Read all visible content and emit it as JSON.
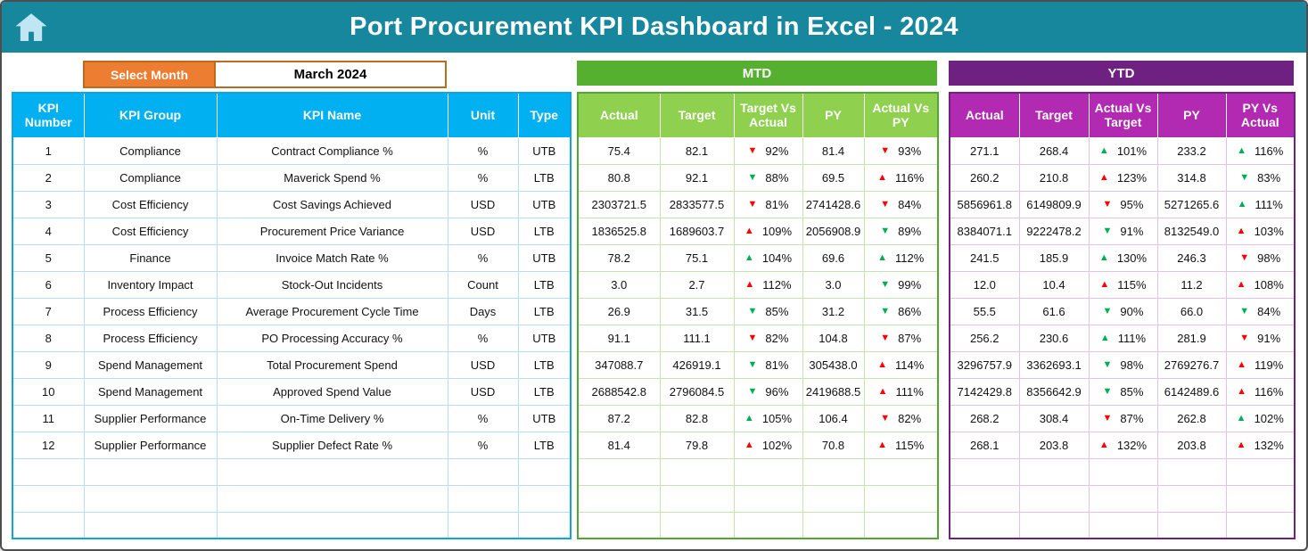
{
  "app": {
    "title": "Port Procurement KPI Dashboard in Excel - 2024"
  },
  "icons": {
    "home": "home-icon"
  },
  "filters": {
    "select_month_label": "Select Month",
    "selected_month": "March 2024"
  },
  "colors": {
    "header_teal": "#16879C",
    "accent_orange": "#ED7D31",
    "kpi_header_blue": "#00B0F0",
    "mtd_band_green": "#55B030",
    "mtd_header_green": "#8FD14F",
    "ytd_band_purple": "#6E2181",
    "ytd_header_magenta": "#B229B2",
    "trend_good_green": "#00B050",
    "trend_bad_red": "#FF0000"
  },
  "kpi_table": {
    "headers": [
      "KPI Number",
      "KPI Group",
      "KPI Name",
      "Unit",
      "Type"
    ],
    "empty_rows": 3,
    "rows": [
      {
        "number": "1",
        "group": "Compliance",
        "name": "Contract Compliance %",
        "unit": "%",
        "type": "UTB"
      },
      {
        "number": "2",
        "group": "Compliance",
        "name": "Maverick Spend %",
        "unit": "%",
        "type": "LTB"
      },
      {
        "number": "3",
        "group": "Cost Efficiency",
        "name": "Cost Savings Achieved",
        "unit": "USD",
        "type": "UTB"
      },
      {
        "number": "4",
        "group": "Cost Efficiency",
        "name": "Procurement Price Variance",
        "unit": "USD",
        "type": "LTB"
      },
      {
        "number": "5",
        "group": "Finance",
        "name": "Invoice Match Rate %",
        "unit": "%",
        "type": "UTB"
      },
      {
        "number": "6",
        "group": "Inventory Impact",
        "name": "Stock-Out Incidents",
        "unit": "Count",
        "type": "LTB"
      },
      {
        "number": "7",
        "group": "Process Efficiency",
        "name": "Average Procurement Cycle Time",
        "unit": "Days",
        "type": "LTB"
      },
      {
        "number": "8",
        "group": "Process Efficiency",
        "name": "PO Processing Accuracy %",
        "unit": "%",
        "type": "UTB"
      },
      {
        "number": "9",
        "group": "Spend Management",
        "name": "Total Procurement Spend",
        "unit": "USD",
        "type": "LTB"
      },
      {
        "number": "10",
        "group": "Spend Management",
        "name": "Approved Spend Value",
        "unit": "USD",
        "type": "LTB"
      },
      {
        "number": "11",
        "group": "Supplier Performance",
        "name": "On-Time Delivery %",
        "unit": "%",
        "type": "UTB"
      },
      {
        "number": "12",
        "group": "Supplier Performance",
        "name": "Supplier Defect Rate %",
        "unit": "%",
        "type": "LTB"
      }
    ]
  },
  "mtd": {
    "band_label": "MTD",
    "headers": [
      "Actual",
      "Target",
      "Target Vs Actual",
      "PY",
      "Actual Vs PY"
    ],
    "empty_rows": 3,
    "rows": [
      {
        "actual": "75.4",
        "target": "82.1",
        "tva": {
          "dir": "down",
          "color": "red",
          "value": "92%"
        },
        "py": "81.4",
        "avpy": {
          "dir": "down",
          "color": "red",
          "value": "93%"
        }
      },
      {
        "actual": "80.8",
        "target": "92.1",
        "tva": {
          "dir": "down",
          "color": "green",
          "value": "88%"
        },
        "py": "69.5",
        "avpy": {
          "dir": "up",
          "color": "red",
          "value": "116%"
        }
      },
      {
        "actual": "2303721.5",
        "target": "2833577.5",
        "tva": {
          "dir": "down",
          "color": "red",
          "value": "81%"
        },
        "py": "2741428.6",
        "avpy": {
          "dir": "down",
          "color": "red",
          "value": "84%"
        }
      },
      {
        "actual": "1836525.8",
        "target": "1689603.7",
        "tva": {
          "dir": "up",
          "color": "red",
          "value": "109%"
        },
        "py": "2056908.9",
        "avpy": {
          "dir": "down",
          "color": "green",
          "value": "89%"
        }
      },
      {
        "actual": "78.2",
        "target": "75.1",
        "tva": {
          "dir": "up",
          "color": "green",
          "value": "104%"
        },
        "py": "69.6",
        "avpy": {
          "dir": "up",
          "color": "green",
          "value": "112%"
        }
      },
      {
        "actual": "3.0",
        "target": "2.7",
        "tva": {
          "dir": "up",
          "color": "red",
          "value": "112%"
        },
        "py": "3.0",
        "avpy": {
          "dir": "down",
          "color": "green",
          "value": "99%"
        }
      },
      {
        "actual": "26.9",
        "target": "31.5",
        "tva": {
          "dir": "down",
          "color": "green",
          "value": "85%"
        },
        "py": "31.2",
        "avpy": {
          "dir": "down",
          "color": "green",
          "value": "86%"
        }
      },
      {
        "actual": "91.1",
        "target": "111.1",
        "tva": {
          "dir": "down",
          "color": "red",
          "value": "82%"
        },
        "py": "104.8",
        "avpy": {
          "dir": "down",
          "color": "red",
          "value": "87%"
        }
      },
      {
        "actual": "347088.7",
        "target": "426919.1",
        "tva": {
          "dir": "down",
          "color": "green",
          "value": "81%"
        },
        "py": "305438.0",
        "avpy": {
          "dir": "up",
          "color": "red",
          "value": "114%"
        }
      },
      {
        "actual": "2688542.8",
        "target": "2796084.5",
        "tva": {
          "dir": "down",
          "color": "green",
          "value": "96%"
        },
        "py": "2419688.5",
        "avpy": {
          "dir": "up",
          "color": "red",
          "value": "111%"
        }
      },
      {
        "actual": "87.2",
        "target": "82.8",
        "tva": {
          "dir": "up",
          "color": "green",
          "value": "105%"
        },
        "py": "106.4",
        "avpy": {
          "dir": "down",
          "color": "red",
          "value": "82%"
        }
      },
      {
        "actual": "81.4",
        "target": "79.8",
        "tva": {
          "dir": "up",
          "color": "red",
          "value": "102%"
        },
        "py": "70.8",
        "avpy": {
          "dir": "up",
          "color": "red",
          "value": "115%"
        }
      }
    ]
  },
  "ytd": {
    "band_label": "YTD",
    "headers": [
      "Actual",
      "Target",
      "Actual Vs Target",
      "PY",
      "PY Vs Actual"
    ],
    "empty_rows": 3,
    "rows": [
      {
        "actual": "271.1",
        "target": "268.4",
        "avt": {
          "dir": "up",
          "color": "green",
          "value": "101%"
        },
        "py": "233.2",
        "pyva": {
          "dir": "up",
          "color": "green",
          "value": "116%"
        }
      },
      {
        "actual": "260.2",
        "target": "210.8",
        "avt": {
          "dir": "up",
          "color": "red",
          "value": "123%"
        },
        "py": "314.8",
        "pyva": {
          "dir": "down",
          "color": "green",
          "value": "83%"
        }
      },
      {
        "actual": "5856961.8",
        "target": "6149809.9",
        "avt": {
          "dir": "down",
          "color": "red",
          "value": "95%"
        },
        "py": "5271265.6",
        "pyva": {
          "dir": "up",
          "color": "green",
          "value": "111%"
        }
      },
      {
        "actual": "8384071.1",
        "target": "9222478.2",
        "avt": {
          "dir": "down",
          "color": "green",
          "value": "91%"
        },
        "py": "8132549.0",
        "pyva": {
          "dir": "up",
          "color": "red",
          "value": "103%"
        }
      },
      {
        "actual": "241.5",
        "target": "185.9",
        "avt": {
          "dir": "up",
          "color": "green",
          "value": "130%"
        },
        "py": "246.3",
        "pyva": {
          "dir": "down",
          "color": "red",
          "value": "98%"
        }
      },
      {
        "actual": "12.0",
        "target": "10.4",
        "avt": {
          "dir": "up",
          "color": "red",
          "value": "115%"
        },
        "py": "11.2",
        "pyva": {
          "dir": "up",
          "color": "red",
          "value": "108%"
        }
      },
      {
        "actual": "55.5",
        "target": "61.6",
        "avt": {
          "dir": "down",
          "color": "green",
          "value": "90%"
        },
        "py": "66.0",
        "pyva": {
          "dir": "down",
          "color": "green",
          "value": "84%"
        }
      },
      {
        "actual": "256.2",
        "target": "230.6",
        "avt": {
          "dir": "up",
          "color": "green",
          "value": "111%"
        },
        "py": "281.9",
        "pyva": {
          "dir": "down",
          "color": "red",
          "value": "91%"
        }
      },
      {
        "actual": "3296757.9",
        "target": "3362693.1",
        "avt": {
          "dir": "down",
          "color": "green",
          "value": "98%"
        },
        "py": "2769276.7",
        "pyva": {
          "dir": "up",
          "color": "red",
          "value": "119%"
        }
      },
      {
        "actual": "7142429.8",
        "target": "8356642.9",
        "avt": {
          "dir": "down",
          "color": "green",
          "value": "85%"
        },
        "py": "6142489.6",
        "pyva": {
          "dir": "up",
          "color": "red",
          "value": "116%"
        }
      },
      {
        "actual": "268.2",
        "target": "308.4",
        "avt": {
          "dir": "down",
          "color": "red",
          "value": "87%"
        },
        "py": "262.8",
        "pyva": {
          "dir": "up",
          "color": "green",
          "value": "102%"
        }
      },
      {
        "actual": "268.1",
        "target": "203.8",
        "avt": {
          "dir": "up",
          "color": "red",
          "value": "132%"
        },
        "py": "203.8",
        "pyva": {
          "dir": "up",
          "color": "red",
          "value": "132%"
        }
      }
    ]
  }
}
